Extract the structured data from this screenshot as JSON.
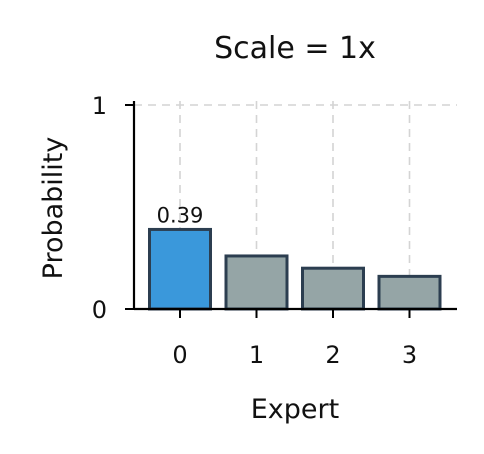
{
  "chart_data": {
    "type": "bar",
    "title": "Scale = 1x",
    "xlabel": "Expert",
    "ylabel": "Probability",
    "categories": [
      "0",
      "1",
      "2",
      "3"
    ],
    "values": [
      0.39,
      0.26,
      0.2,
      0.16
    ],
    "ylim": [
      0,
      1
    ],
    "yticks": [
      "0",
      "1"
    ],
    "grid": true,
    "highlight_index": 0,
    "data_labels": [
      "0.39",
      "",
      "",
      ""
    ],
    "colors": {
      "highlight": "#3a98db",
      "bar": "#95a5a6",
      "edge": "#2c3e50"
    }
  }
}
